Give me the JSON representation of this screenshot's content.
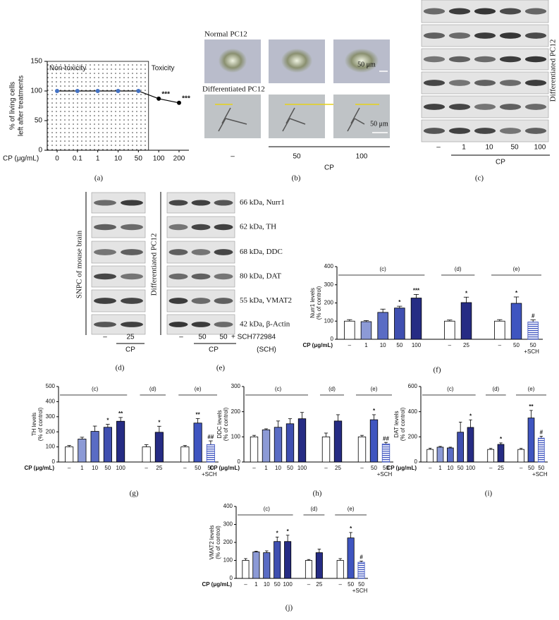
{
  "chart_data": [
    {
      "type": "line",
      "panel": "(a)",
      "xlabel": "CP (μg/mL)",
      "ylabel": [
        "% of living cells",
        "left after treatments"
      ],
      "categories": [
        "0",
        "0.1",
        "1",
        "10",
        "50",
        "100",
        "200"
      ],
      "values": [
        100,
        100,
        100,
        100,
        100,
        87,
        80
      ],
      "color": "#000000",
      "marker_colors": [
        "#4472c4",
        "#4472c4",
        "#4472c4",
        "#4472c4",
        "#4472c4",
        "#000000",
        "#000000"
      ],
      "markers": [
        null,
        null,
        null,
        null,
        null,
        "***",
        "***"
      ],
      "regions": [
        "Non-toxicity",
        "Toxicity"
      ],
      "ylim": [
        0,
        150
      ],
      "yticks": [
        0,
        50,
        100,
        150
      ]
    },
    {
      "type": "bar",
      "panel": "(f)",
      "xlabel": "CP (μg/mL)",
      "ylabel": [
        "Nurr1 levels",
        "(% of control)"
      ],
      "ylim": [
        0,
        400
      ],
      "yticks": [
        0,
        100,
        200,
        300,
        400
      ],
      "groups": [
        {
          "label": "(c)",
          "categories": [
            "–",
            "1",
            "10",
            "50",
            "100"
          ],
          "values": [
            100,
            97,
            148,
            172,
            227
          ],
          "errors": [
            8,
            6,
            18,
            10,
            20
          ],
          "markers": [
            null,
            null,
            null,
            "*",
            "***"
          ],
          "colors": [
            "#ffffff",
            "#8c9ad6",
            "#5a6cc4",
            "#3f4fb0",
            "#262c84"
          ]
        },
        {
          "label": "(d)",
          "categories": [
            "–",
            "25"
          ],
          "values": [
            100,
            202
          ],
          "errors": [
            6,
            30
          ],
          "markers": [
            null,
            "*"
          ],
          "colors": [
            "#ffffff",
            "#262c84"
          ]
        },
        {
          "label": "(e)",
          "categories": [
            "–",
            "50",
            "50"
          ],
          "sublabels": [
            null,
            null,
            "+SCH"
          ],
          "values": [
            100,
            198,
            95
          ],
          "errors": [
            8,
            35,
            12
          ],
          "markers": [
            null,
            "*",
            "#"
          ],
          "colors": [
            "#ffffff",
            "#3f55c0",
            "#3f55c0"
          ],
          "hatch": [
            false,
            false,
            true
          ]
        }
      ]
    },
    {
      "type": "bar",
      "panel": "(g)",
      "xlabel": "CP (μg/mL)",
      "ylabel": [
        "TH levels",
        "(% of control)"
      ],
      "ylim": [
        0,
        500
      ],
      "yticks": [
        0,
        100,
        200,
        300,
        400,
        500
      ],
      "groups": [
        {
          "label": "(c)",
          "categories": [
            "–",
            "1",
            "10",
            "50",
            "100"
          ],
          "values": [
            100,
            152,
            203,
            230,
            270
          ],
          "errors": [
            10,
            12,
            35,
            20,
            25
          ],
          "markers": [
            null,
            null,
            null,
            "*",
            "**"
          ],
          "colors": [
            "#ffffff",
            "#8c9ad6",
            "#5a6cc4",
            "#3f4fb0",
            "#262c84"
          ]
        },
        {
          "label": "(d)",
          "categories": [
            "–",
            "25"
          ],
          "values": [
            100,
            197
          ],
          "errors": [
            15,
            40
          ],
          "markers": [
            null,
            "*"
          ],
          "colors": [
            "#ffffff",
            "#262c84"
          ]
        },
        {
          "label": "(e)",
          "categories": [
            "–",
            "50",
            "50"
          ],
          "sublabels": [
            null,
            null,
            "+SCH"
          ],
          "values": [
            100,
            258,
            115
          ],
          "errors": [
            10,
            30,
            25
          ],
          "markers": [
            null,
            "**",
            "##"
          ],
          "colors": [
            "#ffffff",
            "#3f55c0",
            "#3f55c0"
          ],
          "hatch": [
            false,
            false,
            true
          ]
        }
      ]
    },
    {
      "type": "bar",
      "panel": "(h)",
      "xlabel": "CP (μg/mL)",
      "ylabel": [
        "DDC levels",
        "(% of control)"
      ],
      "ylim": [
        0,
        300
      ],
      "yticks": [
        0,
        100,
        200,
        300
      ],
      "groups": [
        {
          "label": "(c)",
          "categories": [
            "–",
            "1",
            "10",
            "50",
            "100"
          ],
          "values": [
            100,
            128,
            138,
            152,
            172
          ],
          "errors": [
            6,
            4,
            25,
            20,
            25
          ],
          "markers": [
            null,
            null,
            null,
            null,
            null
          ],
          "colors": [
            "#ffffff",
            "#8c9ad6",
            "#5a6cc4",
            "#3f4fb0",
            "#262c84"
          ]
        },
        {
          "label": "(d)",
          "categories": [
            "–",
            "25"
          ],
          "values": [
            100,
            163
          ],
          "errors": [
            15,
            25
          ],
          "markers": [
            null,
            null
          ],
          "colors": [
            "#ffffff",
            "#262c84"
          ]
        },
        {
          "label": "(e)",
          "categories": [
            "–",
            "50",
            "50"
          ],
          "sublabels": [
            null,
            null,
            "+SCH"
          ],
          "values": [
            100,
            168,
            72
          ],
          "errors": [
            6,
            20,
            6
          ],
          "markers": [
            null,
            "*",
            "##"
          ],
          "colors": [
            "#ffffff",
            "#3f55c0",
            "#3f55c0"
          ],
          "hatch": [
            false,
            false,
            true
          ]
        }
      ]
    },
    {
      "type": "bar",
      "panel": "(i)",
      "xlabel": "CP (μg/mL)",
      "ylabel": [
        "DAT levels",
        "(% of control)"
      ],
      "ylim": [
        0,
        600
      ],
      "yticks": [
        0,
        200,
        400,
        600
      ],
      "groups": [
        {
          "label": "(c)",
          "categories": [
            "–",
            "1",
            "10",
            "50",
            "100"
          ],
          "values": [
            100,
            118,
            112,
            237,
            275
          ],
          "errors": [
            10,
            6,
            6,
            80,
            60
          ],
          "markers": [
            null,
            null,
            null,
            null,
            "*"
          ],
          "colors": [
            "#ffffff",
            "#8c9ad6",
            "#5a6cc4",
            "#3f4fb0",
            "#262c84"
          ]
        },
        {
          "label": "(d)",
          "categories": [
            "–",
            "25"
          ],
          "values": [
            100,
            140
          ],
          "errors": [
            8,
            12
          ],
          "markers": [
            null,
            "*"
          ],
          "colors": [
            "#ffffff",
            "#262c84"
          ]
        },
        {
          "label": "(e)",
          "categories": [
            "–",
            "50",
            "50"
          ],
          "sublabels": [
            null,
            null,
            "+SCH"
          ],
          "values": [
            100,
            350,
            190
          ],
          "errors": [
            8,
            60,
            15
          ],
          "markers": [
            null,
            "**",
            "#"
          ],
          "colors": [
            "#ffffff",
            "#3f55c0",
            "#3f55c0"
          ],
          "hatch": [
            false,
            false,
            true
          ]
        }
      ]
    },
    {
      "type": "bar",
      "panel": "(j)",
      "xlabel": "CP (μg/mL)",
      "ylabel": [
        "VMAT2 levels",
        "(% of control)"
      ],
      "ylim": [
        0,
        400
      ],
      "yticks": [
        0,
        100,
        200,
        300,
        400
      ],
      "groups": [
        {
          "label": "(c)",
          "categories": [
            "–",
            "1",
            "10",
            "50",
            "100"
          ],
          "values": [
            100,
            147,
            143,
            205,
            205
          ],
          "errors": [
            10,
            4,
            10,
            25,
            35
          ],
          "markers": [
            null,
            null,
            null,
            "*",
            "*"
          ],
          "colors": [
            "#ffffff",
            "#8c9ad6",
            "#5a6cc4",
            "#3f4fb0",
            "#262c84"
          ]
        },
        {
          "label": "(d)",
          "categories": [
            "–",
            "25"
          ],
          "values": [
            100,
            143
          ],
          "errors": [
            5,
            20
          ],
          "markers": [
            null,
            null
          ],
          "colors": [
            "#ffffff",
            "#262c84"
          ]
        },
        {
          "label": "(e)",
          "categories": [
            "–",
            "50",
            "50"
          ],
          "sublabels": [
            null,
            null,
            "+SCH"
          ],
          "values": [
            100,
            225,
            90
          ],
          "errors": [
            10,
            30,
            6
          ],
          "markers": [
            null,
            "*",
            "#"
          ],
          "colors": [
            "#ffffff",
            "#3f55c0",
            "#3f55c0"
          ],
          "hatch": [
            false,
            false,
            true
          ]
        }
      ]
    }
  ],
  "panel_b": {
    "label": "(b)",
    "rows": [
      "Normal PC12",
      "Differentiated PC12"
    ],
    "scale_bars": [
      "50 μm",
      "50 μm"
    ],
    "lanes": [
      "–",
      "50",
      "100"
    ],
    "group": "CP"
  },
  "panel_c": {
    "label": "(c)",
    "side_label": "Differentiated PC12",
    "lanes": [
      "–",
      "1",
      "10",
      "50",
      "100"
    ],
    "group": "CP"
  },
  "panel_d": {
    "label": "(d)",
    "side_label": "SNPC of mouse brain",
    "lanes": [
      "–",
      "25"
    ],
    "group": "CP"
  },
  "panel_e": {
    "label": "(e)",
    "side_label": "Differentiated PC12",
    "lanes": [
      "–",
      "50",
      "50"
    ],
    "lane_suffix": "+ SCH772984",
    "suffix_note": "(SCH)",
    "group": "CP",
    "bands": [
      "66 kDa, Nurr1",
      "62 kDa, TH",
      "68 kDa, DDC",
      "80 kDa, DAT",
      "55 kDa, VMAT2",
      "42 kDa, β-Actin"
    ]
  }
}
